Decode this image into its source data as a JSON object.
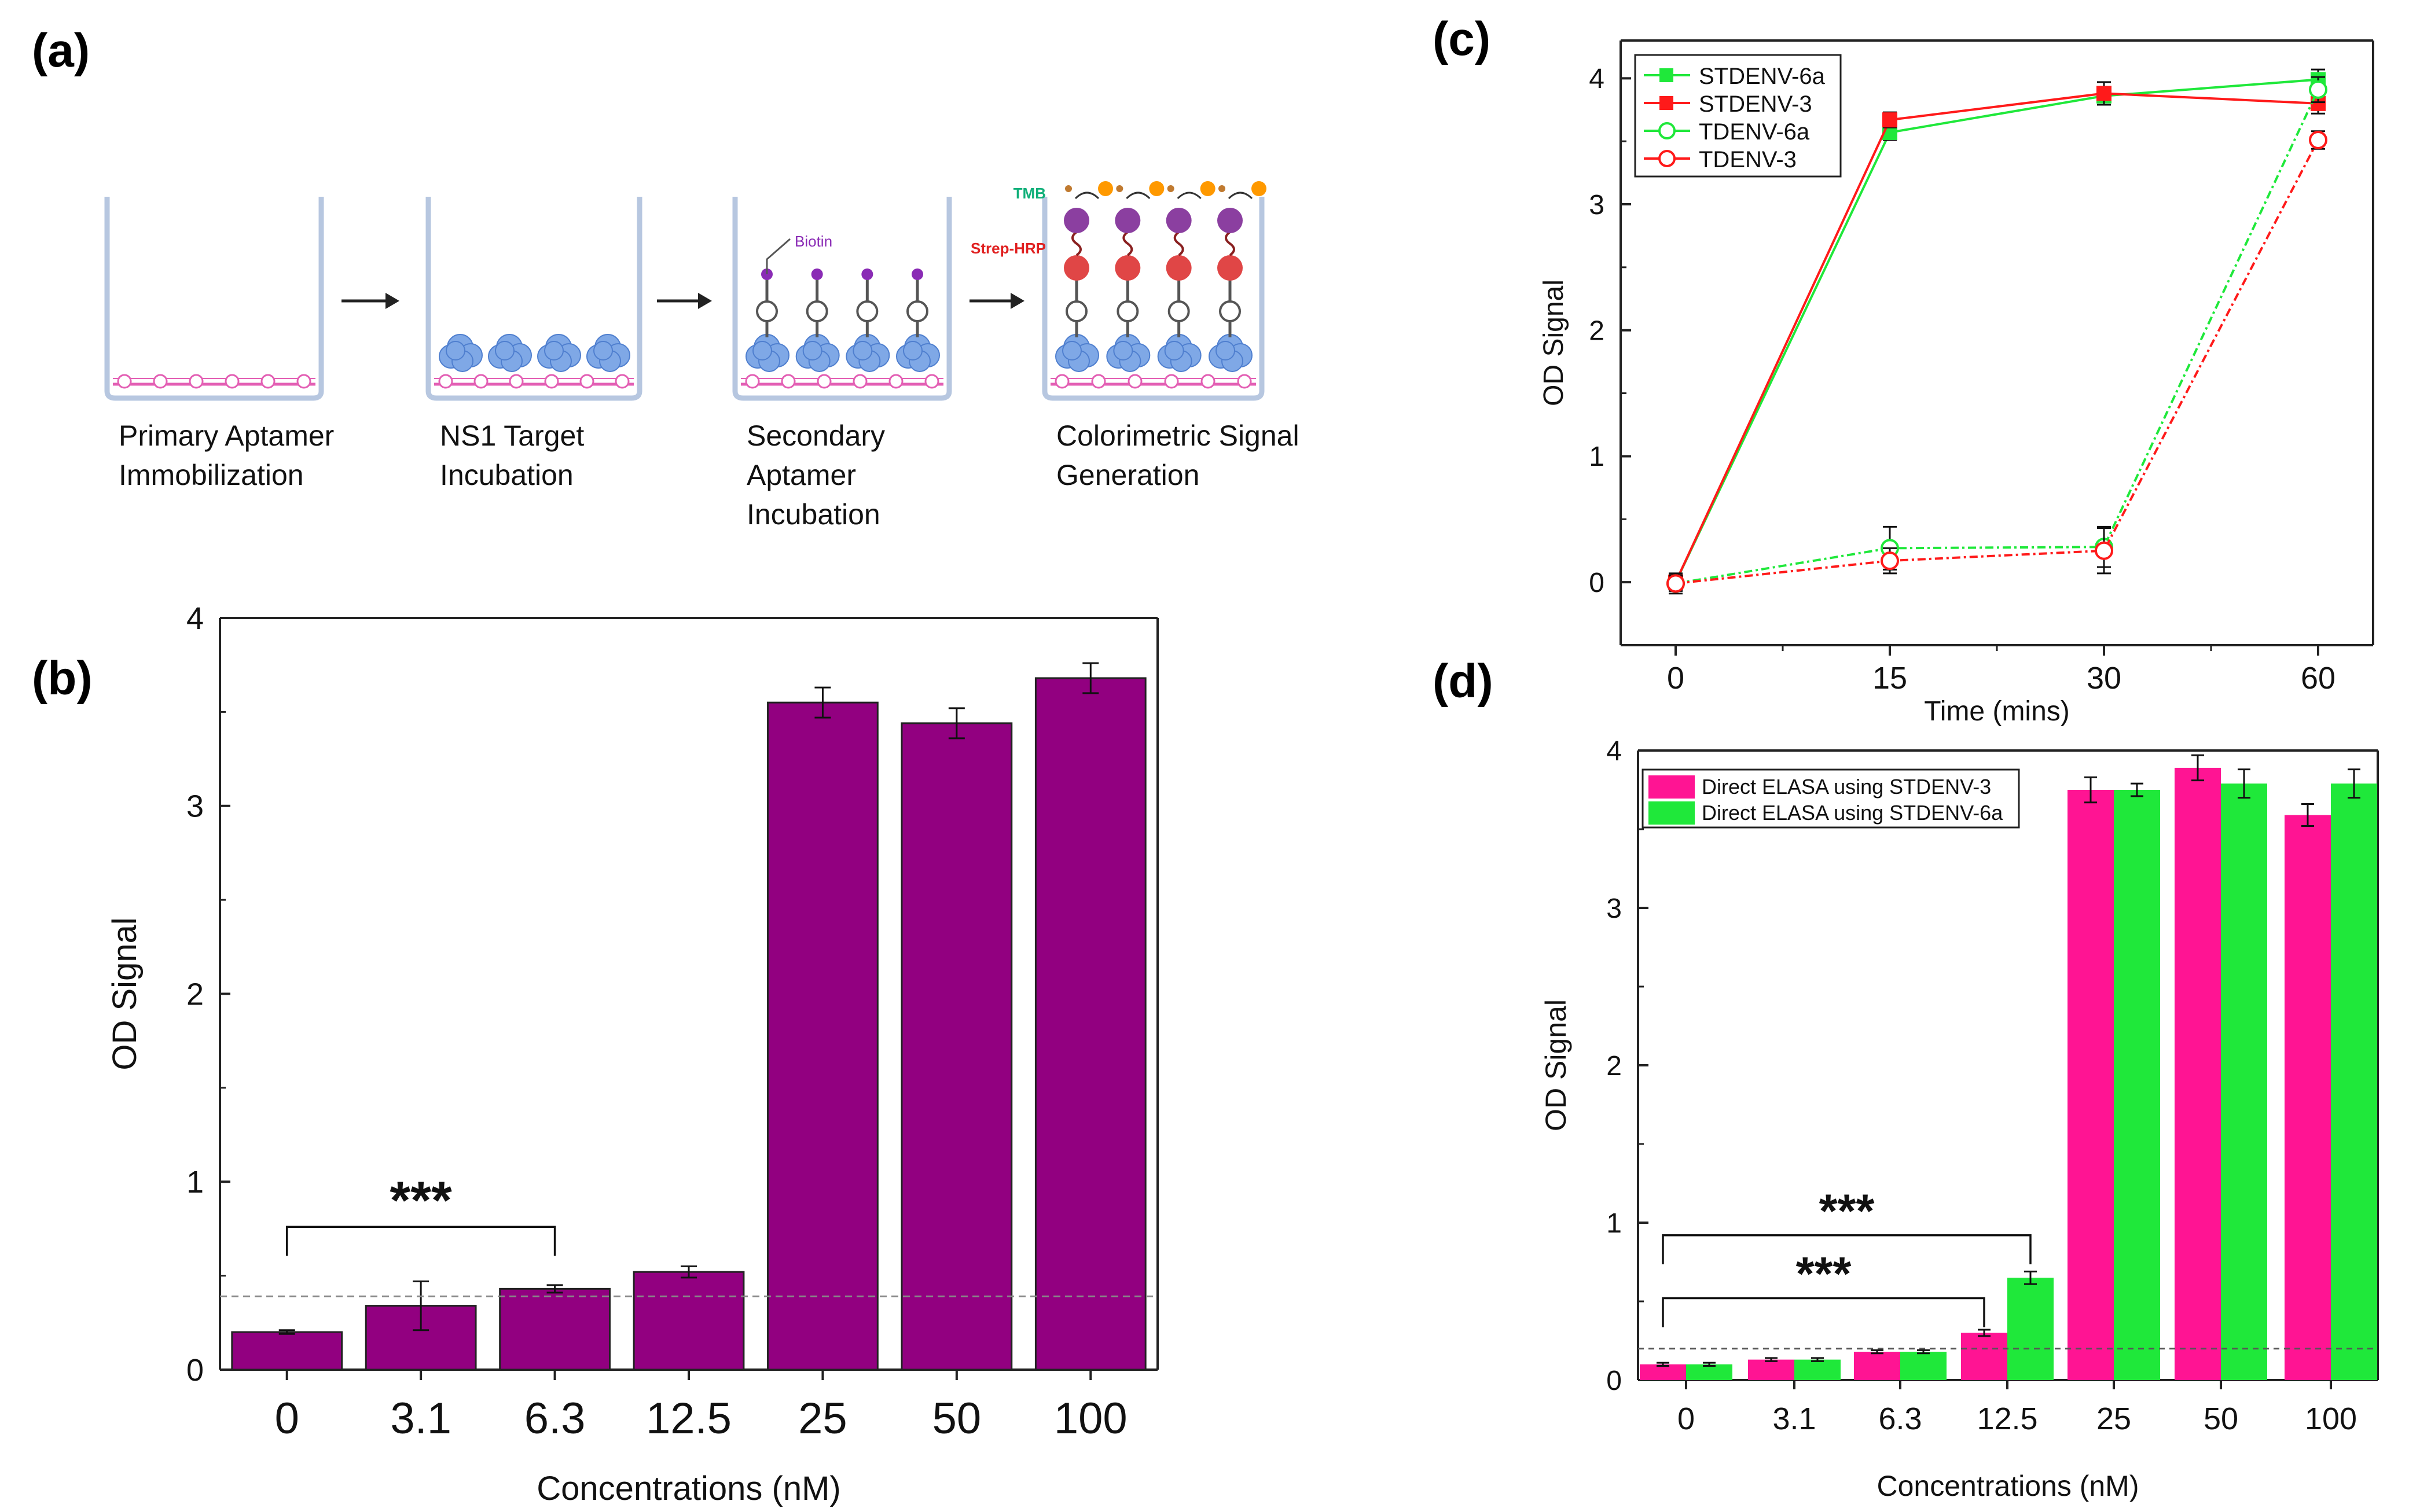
{
  "panel_labels": {
    "a": "(a)",
    "b": "(b)",
    "c": "(c)",
    "d": "(d)"
  },
  "colors": {
    "purple": "#920080",
    "magenta": "#ff1493",
    "green": "#1fe83a",
    "red": "#ff1a1a",
    "dash": "#888888",
    "well": "#b7c7e0"
  },
  "schematic": {
    "steps": [
      {
        "lines": [
          "Primary Aptamer",
          "Immobilization"
        ]
      },
      {
        "lines": [
          "NS1 Target",
          "Incubation"
        ]
      },
      {
        "lines": [
          "Secondary",
          "Aptamer",
          "Incubation"
        ]
      },
      {
        "lines": [
          "Colorimetric Signal",
          "Generation"
        ]
      }
    ],
    "labels": {
      "biotin": "Biotin",
      "tmb": "TMB",
      "strep": "Strep-HRP"
    }
  },
  "chart_data": [
    {
      "id": "b",
      "type": "bar",
      "categories": [
        "0",
        "3.1",
        "6.3",
        "12.5",
        "25",
        "50",
        "100"
      ],
      "values": [
        0.2,
        0.34,
        0.43,
        0.52,
        3.55,
        3.44,
        3.68
      ],
      "errors": [
        0.01,
        0.13,
        0.02,
        0.03,
        0.08,
        0.08,
        0.08
      ],
      "xlabel": "Concentrations (nM)",
      "ylabel": "OD Signal",
      "ylim": [
        0,
        4
      ],
      "yticks": [
        "0",
        "1",
        "2",
        "3",
        "4"
      ],
      "threshold": 0.39,
      "significance": {
        "from": "0",
        "to": "6.3",
        "label": "***"
      }
    },
    {
      "id": "c",
      "type": "line",
      "x": [
        "0",
        "15",
        "30",
        "60"
      ],
      "xlabel": "Time (mins)",
      "ylabel": "OD Signal",
      "ylim": [
        -0.5,
        4.3
      ],
      "yticks": [
        "0",
        "1",
        "2",
        "3",
        "4"
      ],
      "series": [
        {
          "name": "STDENV-6a",
          "marker": "filled-square",
          "color": "green",
          "values": [
            0.0,
            3.57,
            3.86,
            3.99
          ],
          "errors": [
            0.06,
            0.06,
            0.05,
            0.08
          ]
        },
        {
          "name": "STDENV-3",
          "marker": "filled-square",
          "color": "red",
          "values": [
            0.0,
            3.67,
            3.88,
            3.8
          ],
          "errors": [
            0.06,
            0.06,
            0.09,
            0.08
          ]
        },
        {
          "name": "TDENV-6a",
          "marker": "open-circle",
          "color": "green",
          "values": [
            -0.01,
            0.27,
            0.28,
            3.91
          ],
          "errors": [
            0.08,
            0.17,
            0.16,
            0.1
          ]
        },
        {
          "name": "TDENV-3",
          "marker": "open-circle",
          "color": "red",
          "values": [
            -0.01,
            0.17,
            0.25,
            3.51
          ],
          "errors": [
            0.06,
            0.1,
            0.18,
            0.07
          ]
        }
      ]
    },
    {
      "id": "d",
      "type": "bar",
      "categories": [
        "0",
        "3.1",
        "6.3",
        "12.5",
        "25",
        "50",
        "100"
      ],
      "xlabel": "Concentrations (nM)",
      "ylabel": "OD Signal",
      "ylim": [
        0,
        4
      ],
      "yticks": [
        "0",
        "1",
        "2",
        "3",
        "4"
      ],
      "threshold": 0.2,
      "series": [
        {
          "name": "Direct ELASA using STDENV-3",
          "color": "magenta",
          "values": [
            0.1,
            0.13,
            0.18,
            0.3,
            3.75,
            3.89,
            3.59
          ],
          "errors": [
            0.01,
            0.01,
            0.01,
            0.02,
            0.08,
            0.08,
            0.07
          ]
        },
        {
          "name": "Direct ELASA using STDENV-6a",
          "color": "green",
          "values": [
            0.1,
            0.13,
            0.18,
            0.65,
            3.75,
            3.79,
            3.79
          ],
          "errors": [
            0.01,
            0.01,
            0.01,
            0.04,
            0.04,
            0.09,
            0.09
          ]
        }
      ],
      "significance": [
        {
          "from": "0",
          "to": "12.5",
          "series": 1,
          "label": "***"
        },
        {
          "from": "0",
          "to": "12.5",
          "series": 0,
          "label": "***"
        }
      ]
    }
  ]
}
